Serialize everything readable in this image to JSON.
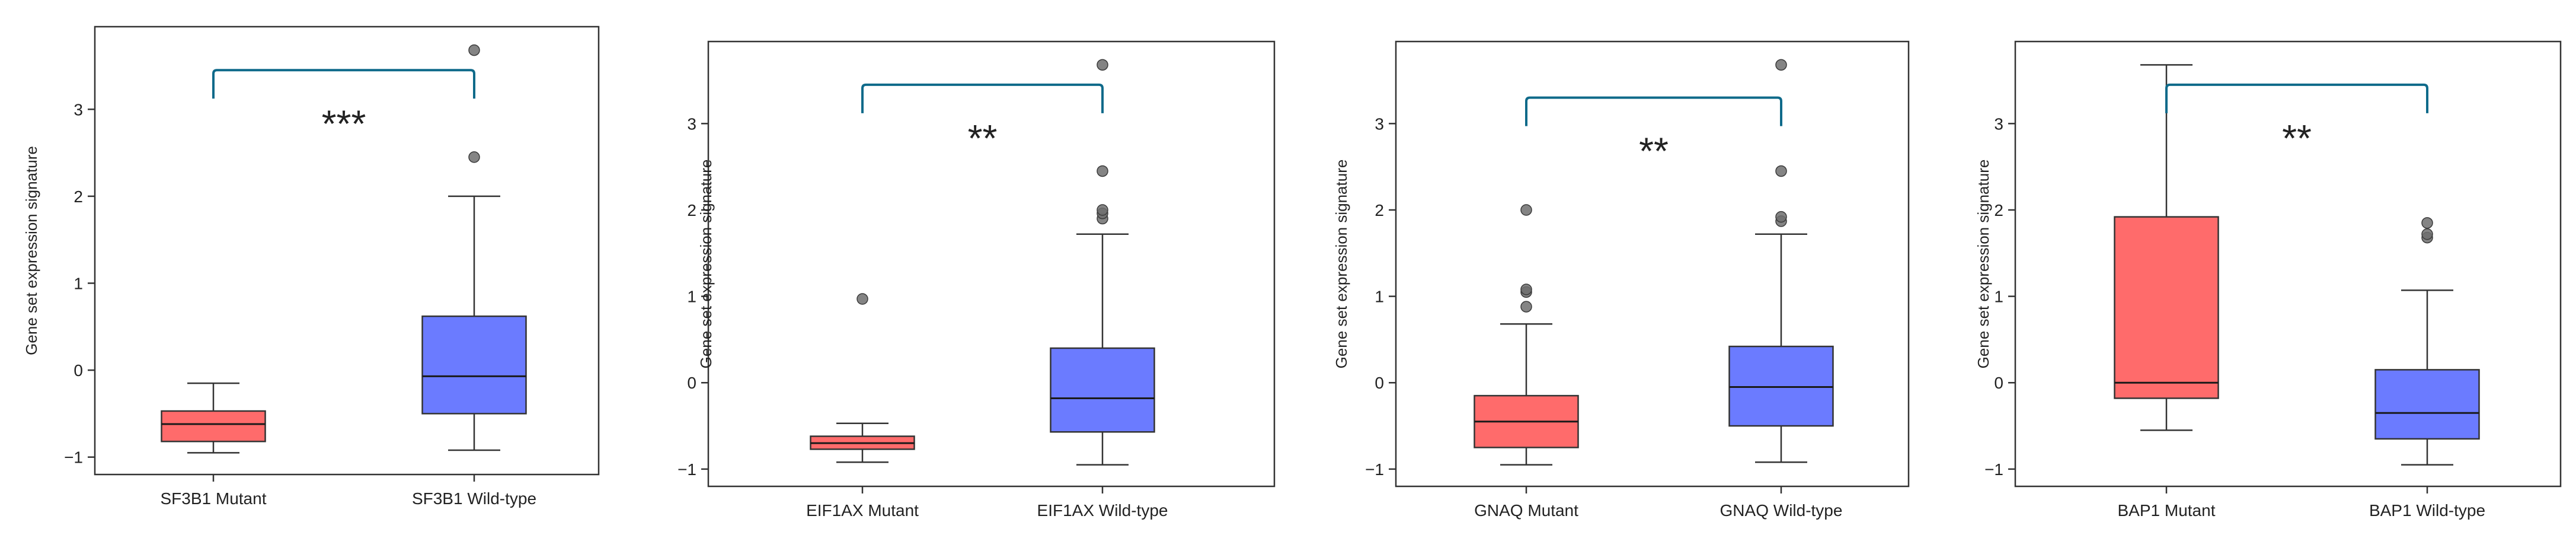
{
  "colors": {
    "mutant": "#ff6b6b",
    "wildtype": "#6b7bff",
    "bracket": "#0f6a8a",
    "outlier": "#6e6e6e",
    "axis": "#333333"
  },
  "chart_data": [
    {
      "type": "boxplot",
      "ylabel": "Gene set expression signature",
      "ylim": [
        -1.2,
        3.95
      ],
      "yticks": [
        -1,
        0,
        1,
        2,
        3
      ],
      "ytick_labels": [
        "−1",
        "0",
        "1",
        "2",
        "3"
      ],
      "categories": [
        "SF3B1 Mutant",
        "SF3B1 Wild-type"
      ],
      "boxes": [
        {
          "group": "SF3B1 Mutant",
          "color_key": "mutant",
          "whisker_low": -0.95,
          "q1": -0.82,
          "median": -0.62,
          "q3": -0.47,
          "whisker_high": -0.15,
          "outliers": []
        },
        {
          "group": "SF3B1 Wild-type",
          "color_key": "wildtype",
          "whisker_low": -0.92,
          "q1": -0.5,
          "median": -0.07,
          "q3": 0.62,
          "whisker_high": 2.0,
          "outliers": [
            2.45,
            3.68
          ]
        }
      ],
      "annotation": {
        "label": "***",
        "y": 3.45,
        "between": [
          0,
          1
        ]
      }
    },
    {
      "type": "boxplot",
      "ylabel": "Gene set expression signature",
      "ylim": [
        -1.2,
        3.95
      ],
      "yticks": [
        -1,
        0,
        1,
        2,
        3
      ],
      "ytick_labels": [
        "−1",
        "0",
        "1",
        "2",
        "3"
      ],
      "categories": [
        "EIF1AX Mutant",
        "EIF1AX Wild-type"
      ],
      "boxes": [
        {
          "group": "EIF1AX Mutant",
          "color_key": "mutant",
          "whisker_low": -0.92,
          "q1": -0.77,
          "median": -0.7,
          "q3": -0.62,
          "whisker_high": -0.47,
          "outliers": [
            0.97
          ]
        },
        {
          "group": "EIF1AX Wild-type",
          "color_key": "wildtype",
          "whisker_low": -0.95,
          "q1": -0.57,
          "median": -0.18,
          "q3": 0.4,
          "whisker_high": 1.72,
          "outliers": [
            1.9,
            1.96,
            2.0,
            2.45,
            3.68
          ]
        }
      ],
      "annotation": {
        "label": "**",
        "y": 3.45,
        "between": [
          0,
          1
        ]
      }
    },
    {
      "type": "boxplot",
      "ylabel": "Gene set expression signature",
      "ylim": [
        -1.2,
        3.95
      ],
      "yticks": [
        -1,
        0,
        1,
        2,
        3
      ],
      "ytick_labels": [
        "−1",
        "0",
        "1",
        "2",
        "3"
      ],
      "categories": [
        "GNAQ Mutant",
        "GNAQ Wild-type"
      ],
      "boxes": [
        {
          "group": "GNAQ Mutant",
          "color_key": "mutant",
          "whisker_low": -0.95,
          "q1": -0.75,
          "median": -0.45,
          "q3": -0.15,
          "whisker_high": 0.68,
          "outliers": [
            0.88,
            1.05,
            1.08,
            2.0
          ]
        },
        {
          "group": "GNAQ Wild-type",
          "color_key": "wildtype",
          "whisker_low": -0.92,
          "q1": -0.5,
          "median": -0.05,
          "q3": 0.42,
          "whisker_high": 1.72,
          "outliers": [
            1.87,
            1.92,
            2.45,
            3.68
          ]
        }
      ],
      "annotation": {
        "label": "**",
        "y": 3.3,
        "between": [
          0,
          1
        ]
      }
    },
    {
      "type": "boxplot",
      "ylabel": "Gene set expression signature",
      "ylim": [
        -1.2,
        3.95
      ],
      "yticks": [
        -1,
        0,
        1,
        2,
        3
      ],
      "ytick_labels": [
        "−1",
        "0",
        "1",
        "2",
        "3"
      ],
      "categories": [
        "BAP1 Mutant",
        "BAP1 Wild-type"
      ],
      "boxes": [
        {
          "group": "BAP1 Mutant",
          "color_key": "mutant",
          "whisker_low": -0.55,
          "q1": -0.18,
          "median": 0.0,
          "q3": 1.92,
          "whisker_high": 3.68,
          "outliers": []
        },
        {
          "group": "BAP1 Wild-type",
          "color_key": "wildtype",
          "whisker_low": -0.95,
          "q1": -0.65,
          "median": -0.35,
          "q3": 0.15,
          "whisker_high": 1.07,
          "outliers": [
            1.68,
            1.72,
            1.85
          ]
        }
      ],
      "annotation": {
        "label": "**",
        "y": 3.45,
        "between": [
          0,
          1
        ]
      }
    }
  ]
}
